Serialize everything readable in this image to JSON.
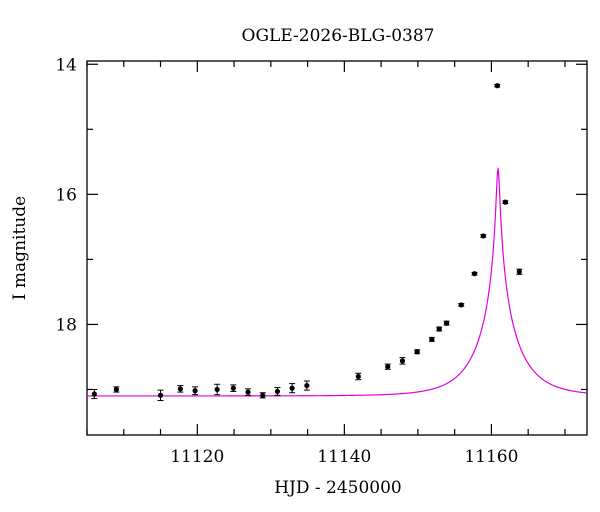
{
  "chart_data": {
    "type": "scatter",
    "title": "OGLE-2026-BLG-0387",
    "xlabel": "HJD - 2450000",
    "ylabel": "I magnitude",
    "xlim": [
      11105,
      11173
    ],
    "ylim": [
      19.7,
      13.95
    ],
    "y_inverted": true,
    "x_ticks": [
      11120,
      11140,
      11160
    ],
    "x_minor_step": 5,
    "y_ticks": [
      14,
      16,
      18
    ],
    "y_minor_step": 1,
    "grid": false,
    "colors": {
      "model": "#e000e0",
      "points": "#000000",
      "axes": "#000000"
    },
    "series": [
      {
        "kind": "data",
        "x": [
          11106,
          11109,
          11115,
          11117.7,
          11119.7,
          11122.7,
          11124.9,
          11126.9,
          11128.9,
          11130.9,
          11132.9,
          11134.9,
          11141.9,
          11145.9,
          11147.9,
          11149.9,
          11151.9,
          11152.9,
          11153.9,
          11155.9,
          11157.7,
          11158.9,
          11160.8,
          11161.9,
          11163.8
        ],
        "y": [
          19.07,
          19.0,
          19.09,
          18.99,
          19.02,
          19.0,
          18.98,
          19.04,
          19.09,
          19.03,
          18.98,
          18.94,
          18.8,
          18.65,
          18.56,
          18.42,
          18.23,
          18.07,
          17.98,
          17.7,
          17.22,
          16.64,
          14.33,
          16.12,
          17.19
        ],
        "yerr": [
          0.07,
          0.04,
          0.08,
          0.05,
          0.06,
          0.08,
          0.05,
          0.05,
          0.04,
          0.06,
          0.07,
          0.07,
          0.05,
          0.04,
          0.05,
          0.03,
          0.03,
          0.03,
          0.03,
          0.02,
          0.02,
          0.02,
          0.02,
          0.02,
          0.04
        ]
      },
      {
        "kind": "model",
        "baseline": 19.1,
        "t0": 11160.9,
        "tE": 5.4,
        "u0": 0.04
      }
    ]
  }
}
